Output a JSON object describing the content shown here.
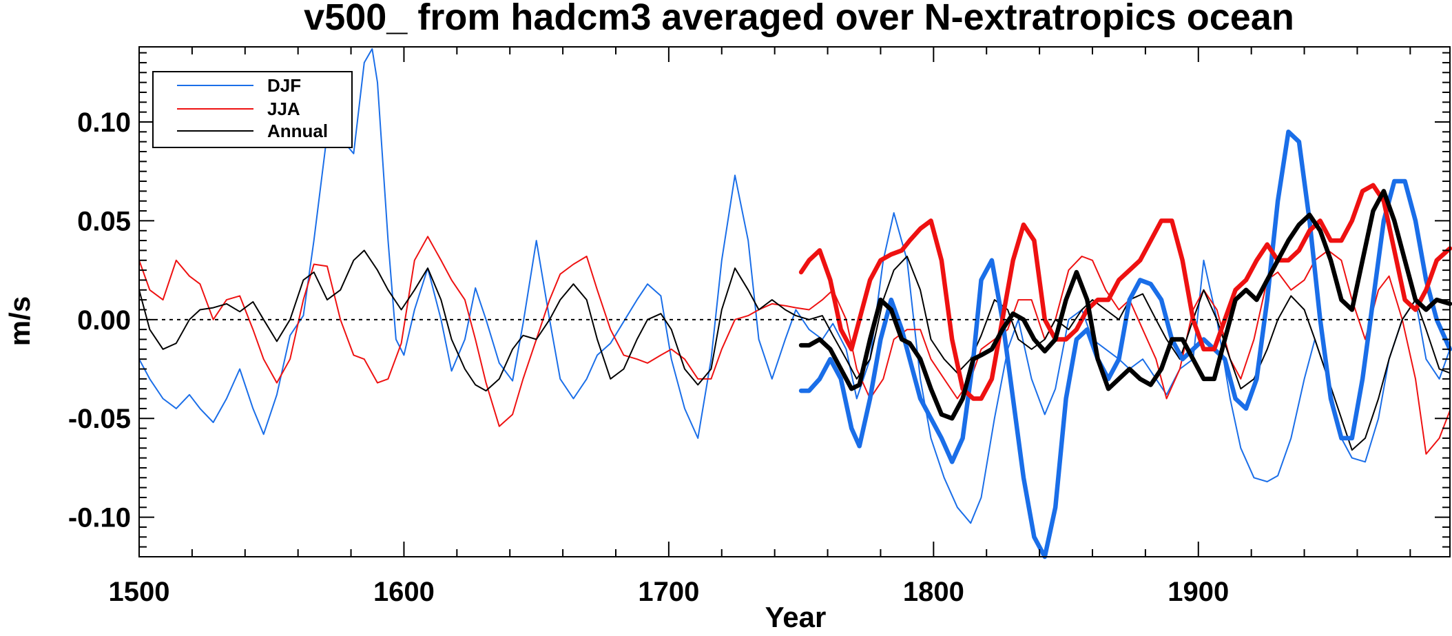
{
  "chart_data": {
    "type": "line",
    "title": "v500_ from hadcm3 averaged over N-extratropics ocean",
    "xlabel": "Year",
    "ylabel": "m/s",
    "xlim": [
      1500,
      1995
    ],
    "ylim": [
      -0.12,
      0.138
    ],
    "xticks": [
      1500,
      1600,
      1700,
      1800,
      1900
    ],
    "xtick_labels": [
      "1500",
      "1600",
      "1700",
      "1800",
      "1900"
    ],
    "yticks": [
      -0.1,
      -0.05,
      0.0,
      0.05,
      0.1
    ],
    "ytick_labels": [
      "-0.10",
      "-0.05",
      "0.00",
      "0.05",
      "0.10"
    ],
    "zero_line": "dotted",
    "grid": false,
    "legend_position": "top-left",
    "legend": [
      {
        "label": "DJF",
        "color": "#1a6ee8"
      },
      {
        "label": "JJA",
        "color": "#ee1111"
      },
      {
        "label": "Annual",
        "color": "#000000"
      }
    ],
    "series": [
      {
        "name": "DJF",
        "style": "thin",
        "color": "#1a6ee8",
        "x": [
          1500,
          1504,
          1509,
          1514,
          1519,
          1523,
          1528,
          1533,
          1538,
          1543,
          1547,
          1552,
          1557,
          1562,
          1566,
          1571,
          1576,
          1581,
          1585,
          1588,
          1590,
          1594,
          1597,
          1600,
          1604,
          1609,
          1614,
          1618,
          1623,
          1627,
          1631,
          1636,
          1641,
          1645,
          1650,
          1655,
          1659,
          1664,
          1669,
          1673,
          1678,
          1683,
          1688,
          1692,
          1697,
          1701,
          1706,
          1711,
          1716,
          1720,
          1725,
          1730,
          1734,
          1739,
          1744,
          1748,
          1753,
          1758,
          1762,
          1767,
          1771,
          1776,
          1781,
          1785,
          1790,
          1795,
          1799,
          1804,
          1809,
          1814,
          1818,
          1823,
          1828,
          1832,
          1837,
          1842,
          1846,
          1851,
          1856,
          1860,
          1865,
          1870,
          1874,
          1879,
          1884,
          1888,
          1893,
          1898,
          1902,
          1907,
          1912,
          1916,
          1921,
          1926,
          1930,
          1935,
          1940,
          1944,
          1949,
          1954,
          1958,
          1963,
          1968,
          1972,
          1977,
          1982,
          1986,
          1991,
          1995
        ],
        "y": [
          -0.02,
          -0.03,
          -0.04,
          -0.045,
          -0.038,
          -0.045,
          -0.052,
          -0.04,
          -0.025,
          -0.045,
          -0.058,
          -0.038,
          -0.008,
          0.002,
          0.04,
          0.094,
          0.092,
          0.084,
          0.13,
          0.137,
          0.12,
          0.04,
          -0.01,
          -0.018,
          0.005,
          0.026,
          0.0,
          -0.026,
          -0.01,
          0.016,
          0.0,
          -0.022,
          -0.031,
          -0.002,
          0.04,
          0.0,
          -0.03,
          -0.04,
          -0.03,
          -0.018,
          -0.012,
          -0.001,
          0.01,
          0.018,
          0.012,
          -0.02,
          -0.045,
          -0.06,
          -0.02,
          0.03,
          0.073,
          0.04,
          -0.01,
          -0.03,
          -0.01,
          0.005,
          -0.005,
          -0.01,
          -0.002,
          -0.015,
          -0.04,
          -0.02,
          0.03,
          0.054,
          0.03,
          -0.03,
          -0.06,
          -0.08,
          -0.095,
          -0.103,
          -0.09,
          -0.05,
          -0.015,
          0.0,
          -0.03,
          -0.048,
          -0.035,
          0.0,
          0.005,
          -0.01,
          -0.015,
          -0.02,
          -0.025,
          -0.02,
          -0.03,
          -0.038,
          -0.025,
          -0.02,
          0.03,
          0.0,
          -0.04,
          -0.065,
          -0.08,
          -0.082,
          -0.079,
          -0.06,
          -0.03,
          -0.01,
          -0.03,
          -0.06,
          -0.07,
          -0.072,
          -0.05,
          -0.02,
          0.0,
          0.01,
          -0.02,
          -0.03,
          -0.015
        ]
      },
      {
        "name": "JJA",
        "style": "thin",
        "color": "#ee1111",
        "x": [
          1500,
          1504,
          1509,
          1514,
          1519,
          1523,
          1528,
          1533,
          1538,
          1543,
          1547,
          1552,
          1557,
          1562,
          1566,
          1571,
          1576,
          1581,
          1585,
          1590,
          1594,
          1599,
          1604,
          1609,
          1614,
          1618,
          1623,
          1627,
          1631,
          1636,
          1641,
          1645,
          1650,
          1655,
          1659,
          1664,
          1669,
          1673,
          1678,
          1683,
          1688,
          1692,
          1697,
          1701,
          1706,
          1711,
          1716,
          1720,
          1725,
          1730,
          1734,
          1739,
          1744,
          1748,
          1753,
          1758,
          1762,
          1767,
          1771,
          1776,
          1781,
          1785,
          1790,
          1795,
          1799,
          1804,
          1809,
          1814,
          1818,
          1823,
          1828,
          1832,
          1837,
          1842,
          1846,
          1851,
          1856,
          1860,
          1865,
          1870,
          1874,
          1879,
          1884,
          1888,
          1893,
          1898,
          1902,
          1907,
          1912,
          1916,
          1921,
          1926,
          1930,
          1935,
          1940,
          1944,
          1949,
          1954,
          1958,
          1963,
          1968,
          1972,
          1977,
          1982,
          1986,
          1991,
          1995
        ],
        "y": [
          0.03,
          0.015,
          0.01,
          0.03,
          0.022,
          0.018,
          0.0,
          0.01,
          0.012,
          -0.005,
          -0.02,
          -0.032,
          -0.02,
          0.01,
          0.028,
          0.027,
          0.0,
          -0.018,
          -0.02,
          -0.032,
          -0.03,
          -0.012,
          0.03,
          0.042,
          0.03,
          0.02,
          0.01,
          -0.01,
          -0.032,
          -0.054,
          -0.048,
          -0.03,
          -0.01,
          0.01,
          0.023,
          0.028,
          0.032,
          0.015,
          -0.005,
          -0.018,
          -0.02,
          -0.022,
          -0.018,
          -0.015,
          -0.02,
          -0.03,
          -0.03,
          -0.015,
          0.0,
          0.002,
          0.005,
          0.008,
          0.007,
          0.006,
          0.005,
          0.01,
          0.015,
          0.0,
          -0.025,
          -0.04,
          -0.03,
          -0.01,
          -0.005,
          -0.005,
          -0.02,
          -0.03,
          -0.04,
          -0.03,
          -0.015,
          -0.01,
          -0.005,
          0.01,
          0.01,
          -0.01,
          0.0,
          0.025,
          0.032,
          0.03,
          0.015,
          0.005,
          0.01,
          -0.005,
          -0.02,
          -0.04,
          -0.025,
          0.005,
          0.015,
          0.005,
          -0.02,
          -0.03,
          -0.01,
          0.02,
          0.024,
          0.015,
          0.02,
          0.03,
          0.035,
          0.03,
          0.01,
          -0.01,
          0.015,
          0.022,
          0.0,
          -0.03,
          -0.068,
          -0.06,
          -0.046
        ]
      },
      {
        "name": "Annual",
        "style": "thin",
        "color": "#000000",
        "x": [
          1500,
          1504,
          1509,
          1514,
          1519,
          1523,
          1528,
          1533,
          1538,
          1543,
          1547,
          1552,
          1557,
          1562,
          1566,
          1571,
          1576,
          1581,
          1585,
          1590,
          1594,
          1599,
          1604,
          1609,
          1614,
          1618,
          1623,
          1627,
          1631,
          1636,
          1641,
          1645,
          1650,
          1655,
          1659,
          1664,
          1669,
          1673,
          1678,
          1683,
          1688,
          1692,
          1697,
          1701,
          1706,
          1711,
          1716,
          1720,
          1725,
          1730,
          1734,
          1739,
          1744,
          1748,
          1753,
          1758,
          1762,
          1767,
          1771,
          1776,
          1781,
          1785,
          1790,
          1795,
          1799,
          1804,
          1809,
          1814,
          1818,
          1823,
          1828,
          1832,
          1837,
          1842,
          1846,
          1851,
          1856,
          1860,
          1865,
          1870,
          1874,
          1879,
          1884,
          1888,
          1893,
          1898,
          1902,
          1907,
          1912,
          1916,
          1921,
          1926,
          1930,
          1935,
          1940,
          1944,
          1949,
          1954,
          1958,
          1963,
          1968,
          1972,
          1977,
          1982,
          1986,
          1991,
          1995
        ],
        "y": [
          0.015,
          -0.005,
          -0.015,
          -0.012,
          0.0,
          0.005,
          0.006,
          0.008,
          0.004,
          0.009,
          0.0,
          -0.011,
          0.0,
          0.02,
          0.024,
          0.01,
          0.015,
          0.03,
          0.035,
          0.025,
          0.015,
          0.005,
          0.015,
          0.026,
          0.01,
          -0.01,
          -0.025,
          -0.033,
          -0.036,
          -0.03,
          -0.015,
          -0.008,
          -0.01,
          0.0,
          0.01,
          0.018,
          0.01,
          -0.01,
          -0.03,
          -0.025,
          -0.01,
          0.0,
          0.003,
          -0.005,
          -0.025,
          -0.033,
          -0.025,
          0.005,
          0.026,
          0.015,
          0.005,
          0.01,
          0.005,
          0.002,
          0.0,
          0.002,
          -0.008,
          -0.02,
          -0.03,
          -0.02,
          0.01,
          0.025,
          0.032,
          0.015,
          -0.01,
          -0.02,
          -0.027,
          -0.02,
          -0.008,
          0.01,
          0.005,
          -0.01,
          -0.015,
          -0.01,
          0.0,
          -0.005,
          0.005,
          0.01,
          0.005,
          0.0,
          0.01,
          0.013,
          0.0,
          -0.01,
          -0.02,
          0.0,
          0.015,
          0.0,
          -0.02,
          -0.035,
          -0.03,
          -0.015,
          0.0,
          0.012,
          0.005,
          -0.01,
          -0.03,
          -0.05,
          -0.066,
          -0.06,
          -0.04,
          -0.02,
          0.0,
          0.01,
          -0.005,
          -0.025,
          -0.027
        ]
      },
      {
        "name": "DJF",
        "style": "thick",
        "color": "#1a6ee8",
        "x": [
          1750,
          1753,
          1757,
          1761,
          1765,
          1769,
          1772,
          1776,
          1780,
          1784,
          1788,
          1791,
          1795,
          1799,
          1803,
          1807,
          1811,
          1815,
          1818,
          1822,
          1826,
          1830,
          1834,
          1838,
          1842,
          1846,
          1850,
          1854,
          1858,
          1862,
          1866,
          1870,
          1874,
          1878,
          1882,
          1886,
          1890,
          1894,
          1898,
          1902,
          1906,
          1910,
          1914,
          1918,
          1922,
          1926,
          1930,
          1934,
          1938,
          1942,
          1946,
          1950,
          1954,
          1958,
          1962,
          1966,
          1970,
          1974,
          1978,
          1982,
          1986,
          1990,
          1995
        ],
        "y": [
          -0.036,
          -0.036,
          -0.03,
          -0.02,
          -0.03,
          -0.055,
          -0.064,
          -0.04,
          -0.01,
          0.01,
          -0.005,
          -0.02,
          -0.04,
          -0.05,
          -0.06,
          -0.072,
          -0.06,
          -0.02,
          0.02,
          0.03,
          0.0,
          -0.04,
          -0.08,
          -0.11,
          -0.12,
          -0.095,
          -0.04,
          -0.01,
          -0.005,
          -0.02,
          -0.03,
          -0.02,
          0.01,
          0.02,
          0.018,
          0.01,
          -0.01,
          -0.02,
          -0.015,
          -0.01,
          -0.015,
          -0.02,
          -0.04,
          -0.045,
          -0.03,
          0.01,
          0.06,
          0.095,
          0.09,
          0.05,
          0.0,
          -0.04,
          -0.06,
          -0.06,
          -0.03,
          0.01,
          0.05,
          0.07,
          0.07,
          0.05,
          0.02,
          0.0,
          -0.015
        ]
      },
      {
        "name": "JJA",
        "style": "thick",
        "color": "#ee1111",
        "x": [
          1750,
          1753,
          1757,
          1761,
          1765,
          1769,
          1772,
          1776,
          1780,
          1784,
          1788,
          1791,
          1795,
          1799,
          1803,
          1807,
          1811,
          1815,
          1818,
          1822,
          1826,
          1830,
          1834,
          1838,
          1842,
          1846,
          1850,
          1854,
          1858,
          1862,
          1866,
          1870,
          1874,
          1878,
          1882,
          1886,
          1890,
          1894,
          1898,
          1902,
          1906,
          1910,
          1914,
          1918,
          1922,
          1926,
          1930,
          1934,
          1938,
          1942,
          1946,
          1950,
          1954,
          1958,
          1962,
          1966,
          1970,
          1974,
          1978,
          1982,
          1986,
          1990,
          1995
        ],
        "y": [
          0.024,
          0.03,
          0.035,
          0.02,
          -0.005,
          -0.015,
          0.0,
          0.02,
          0.03,
          0.033,
          0.035,
          0.04,
          0.046,
          0.05,
          0.03,
          -0.01,
          -0.035,
          -0.04,
          -0.04,
          -0.03,
          0.0,
          0.03,
          0.048,
          0.04,
          0.0,
          -0.01,
          -0.01,
          -0.005,
          0.005,
          0.01,
          0.01,
          0.02,
          0.025,
          0.03,
          0.04,
          0.05,
          0.05,
          0.03,
          0.0,
          -0.015,
          -0.015,
          0.0,
          0.015,
          0.02,
          0.03,
          0.038,
          0.03,
          0.03,
          0.035,
          0.045,
          0.05,
          0.04,
          0.04,
          0.05,
          0.065,
          0.068,
          0.06,
          0.035,
          0.01,
          0.005,
          0.015,
          0.03,
          0.036
        ]
      },
      {
        "name": "Annual",
        "style": "thick",
        "color": "#000000",
        "x": [
          1750,
          1753,
          1757,
          1761,
          1765,
          1769,
          1772,
          1776,
          1780,
          1784,
          1788,
          1791,
          1795,
          1799,
          1803,
          1807,
          1811,
          1815,
          1818,
          1822,
          1826,
          1830,
          1834,
          1838,
          1842,
          1846,
          1850,
          1854,
          1858,
          1862,
          1866,
          1870,
          1874,
          1878,
          1882,
          1886,
          1890,
          1894,
          1898,
          1902,
          1906,
          1910,
          1914,
          1918,
          1922,
          1926,
          1930,
          1934,
          1938,
          1942,
          1946,
          1950,
          1954,
          1958,
          1962,
          1966,
          1970,
          1974,
          1978,
          1982,
          1986,
          1990,
          1995
        ],
        "y": [
          -0.013,
          -0.013,
          -0.01,
          -0.015,
          -0.025,
          -0.035,
          -0.033,
          -0.01,
          0.01,
          0.005,
          -0.01,
          -0.012,
          -0.02,
          -0.035,
          -0.048,
          -0.05,
          -0.04,
          -0.02,
          -0.018,
          -0.015,
          -0.005,
          0.003,
          0.0,
          -0.01,
          -0.016,
          -0.01,
          0.01,
          0.024,
          0.01,
          -0.02,
          -0.035,
          -0.03,
          -0.025,
          -0.03,
          -0.033,
          -0.025,
          -0.01,
          -0.01,
          -0.02,
          -0.03,
          -0.03,
          -0.01,
          0.01,
          0.015,
          0.01,
          0.02,
          0.03,
          0.04,
          0.048,
          0.053,
          0.045,
          0.03,
          0.01,
          0.005,
          0.03,
          0.055,
          0.065,
          0.05,
          0.03,
          0.01,
          0.005,
          0.01,
          0.008
        ]
      }
    ]
  }
}
